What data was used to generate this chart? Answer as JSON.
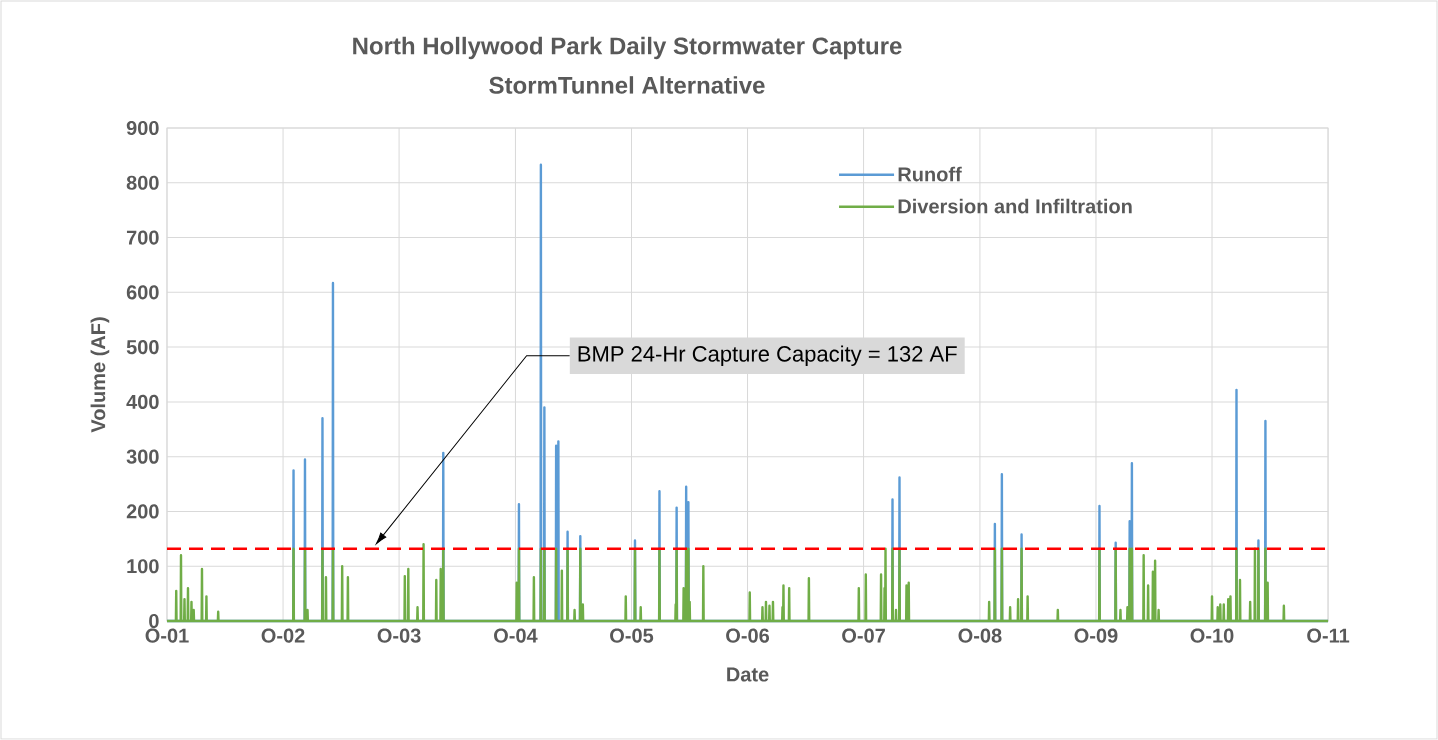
{
  "chart_data": {
    "type": "line",
    "title": "North Hollywood Park Daily Stormwater Capture",
    "subtitle": "StormTunnel Alternative",
    "xlabel": "Date",
    "ylabel": "Volume (AF)",
    "xlim": [
      "2001-10-01",
      "2011-10-01"
    ],
    "xticks": [
      {
        "value": "2001-10-01",
        "label": "O-01"
      },
      {
        "value": "2002-10-01",
        "label": "O-02"
      },
      {
        "value": "2003-10-01",
        "label": "O-03"
      },
      {
        "value": "2004-10-01",
        "label": "O-04"
      },
      {
        "value": "2005-10-01",
        "label": "O-05"
      },
      {
        "value": "2006-10-01",
        "label": "O-06"
      },
      {
        "value": "2007-10-01",
        "label": "O-07"
      },
      {
        "value": "2008-10-01",
        "label": "O-08"
      },
      {
        "value": "2009-10-01",
        "label": "O-09"
      },
      {
        "value": "2010-10-01",
        "label": "O-10"
      },
      {
        "value": "2011-10-01",
        "label": "O-11"
      }
    ],
    "ylim": [
      0,
      900
    ],
    "yticks": [
      0,
      100,
      200,
      300,
      400,
      500,
      600,
      700,
      800,
      900
    ],
    "grid": true,
    "legend": "top right",
    "series": [
      {
        "name": "Runoff",
        "color": "#5b9bd5",
        "x": [
          "2001-10-01",
          "2002-11-02",
          "2002-11-03",
          "2002-11-04",
          "2002-12-08",
          "2002-12-09",
          "2002-12-10",
          "2003-02-01",
          "2003-02-02",
          "2003-02-03",
          "2003-03-06",
          "2003-03-07",
          "2003-03-08",
          "2004-02-16",
          "2004-02-17",
          "2004-02-18",
          "2004-10-11",
          "2004-10-12",
          "2004-10-13",
          "2004-12-19",
          "2004-12-20",
          "2004-12-21",
          "2004-12-30",
          "2004-12-31",
          "2005-01-01",
          "2005-02-05",
          "2005-02-06",
          "2005-02-07",
          "2005-02-12",
          "2005-02-13",
          "2005-02-14",
          "2005-03-13",
          "2005-03-14",
          "2005-03-15",
          "2005-04-22",
          "2005-04-23",
          "2005-04-24",
          "2005-10-11",
          "2005-10-12",
          "2005-10-13",
          "2005-12-27",
          "2005-12-28",
          "2005-12-29",
          "2006-02-19",
          "2006-02-20",
          "2006-02-21",
          "2006-03-21",
          "2006-03-22",
          "2006-03-23",
          "2006-03-28",
          "2006-03-29",
          "2006-03-30",
          "2007-12-30",
          "2007-12-31",
          "2008-01-01",
          "2008-01-21",
          "2008-01-22",
          "2008-01-23",
          "2008-11-16",
          "2008-11-17",
          "2008-11-18",
          "2008-12-08",
          "2008-12-09",
          "2008-12-10",
          "2009-02-08",
          "2009-02-09",
          "2009-02-10",
          "2009-10-11",
          "2009-10-12",
          "2009-10-13",
          "2009-12-01",
          "2009-12-02",
          "2009-12-03",
          "2010-01-14",
          "2010-01-15",
          "2010-01-16",
          "2010-01-21",
          "2010-01-22",
          "2010-01-23",
          "2010-12-16",
          "2010-12-17",
          "2010-12-18",
          "2011-02-23",
          "2011-02-24",
          "2011-02-25",
          "2011-03-17",
          "2011-03-18",
          "2011-03-19",
          "2011-10-01"
        ],
        "values": [
          0,
          0,
          275,
          0,
          0,
          295,
          0,
          0,
          370,
          0,
          0,
          617,
          0,
          0,
          307,
          0,
          0,
          213,
          0,
          0,
          833,
          0,
          0,
          390,
          0,
          0,
          320,
          0,
          0,
          328,
          0,
          0,
          163,
          0,
          0,
          155,
          0,
          0,
          147,
          0,
          0,
          237,
          0,
          0,
          207,
          0,
          0,
          245,
          0,
          0,
          217,
          0,
          0,
          222,
          0,
          0,
          262,
          0,
          0,
          177,
          0,
          0,
          268,
          0,
          0,
          158,
          0,
          0,
          210,
          0,
          0,
          143,
          0,
          0,
          182,
          0,
          0,
          288,
          0,
          0,
          422,
          0,
          0,
          147,
          0,
          0,
          365,
          0,
          0
        ]
      },
      {
        "name": "Diversion and Infiltration",
        "color": "#70ad47",
        "x": [
          "2001-10-01",
          "2001-10-29",
          "2001-10-30",
          "2001-10-31",
          "2001-11-13",
          "2001-11-14",
          "2001-11-15",
          "2001-11-24",
          "2001-11-25",
          "2001-11-26",
          "2001-12-05",
          "2001-12-06",
          "2001-12-07",
          "2001-12-16",
          "2001-12-17",
          "2001-12-18",
          "2001-12-23",
          "2001-12-24",
          "2001-12-25",
          "2002-01-18",
          "2002-01-19",
          "2002-01-20",
          "2002-02-01",
          "2002-02-02",
          "2002-02-03",
          "2002-03-10",
          "2002-03-11",
          "2002-03-12",
          "2002-11-02",
          "2002-11-03",
          "2002-11-04",
          "2002-12-08",
          "2002-12-09",
          "2002-12-10",
          "2002-12-16",
          "2002-12-17",
          "2002-12-18",
          "2003-02-01",
          "2003-02-02",
          "2003-02-03",
          "2003-02-12",
          "2003-02-13",
          "2003-02-14",
          "2003-03-06",
          "2003-03-07",
          "2003-03-08",
          "2003-04-04",
          "2003-04-05",
          "2003-04-06",
          "2003-04-22",
          "2003-04-23",
          "2003-04-24",
          "2003-10-18",
          "2003-10-19",
          "2003-10-20",
          "2003-10-29",
          "2003-10-30",
          "2003-10-31",
          "2003-11-27",
          "2003-11-28",
          "2003-11-29",
          "2003-12-16",
          "2003-12-17",
          "2003-12-18",
          "2004-01-25",
          "2004-01-26",
          "2004-01-27",
          "2004-02-08",
          "2004-02-09",
          "2004-02-10",
          "2004-02-16",
          "2004-02-17",
          "2004-02-18",
          "2004-10-04",
          "2004-10-05",
          "2004-10-06",
          "2004-10-11",
          "2004-10-12",
          "2004-10-13",
          "2004-11-27",
          "2004-11-28",
          "2004-11-29",
          "2004-12-19",
          "2004-12-20",
          "2004-12-21",
          "2004-12-30",
          "2004-12-31",
          "2005-01-01",
          "2005-02-05",
          "2005-02-06",
          "2005-02-07",
          "2005-02-23",
          "2005-02-24",
          "2005-02-25",
          "2005-03-13",
          "2005-03-14",
          "2005-03-15",
          "2005-04-04",
          "2005-04-05",
          "2005-04-06",
          "2005-04-22",
          "2005-04-23",
          "2005-04-24",
          "2005-04-30",
          "2005-05-01",
          "2005-05-02",
          "2005-09-12",
          "2005-09-13",
          "2005-09-14",
          "2005-10-11",
          "2005-10-12",
          "2005-10-13",
          "2005-10-29",
          "2005-10-30",
          "2005-10-31",
          "2005-12-27",
          "2005-12-28",
          "2005-12-29",
          "2006-02-16",
          "2006-02-17",
          "2006-02-18",
          "2006-02-19",
          "2006-02-20",
          "2006-02-21",
          "2006-03-13",
          "2006-03-14",
          "2006-03-15",
          "2006-03-21",
          "2006-03-22",
          "2006-03-23",
          "2006-03-28",
          "2006-03-29",
          "2006-03-30",
          "2006-04-01",
          "2006-04-02",
          "2006-04-03",
          "2006-05-14",
          "2006-05-15",
          "2006-05-16",
          "2006-10-07",
          "2006-10-08",
          "2006-10-09",
          "2006-11-16",
          "2006-11-17",
          "2006-11-18",
          "2006-11-27",
          "2006-11-28",
          "2006-11-29",
          "2006-12-08",
          "2006-12-09",
          "2006-12-10",
          "2006-12-19",
          "2006-12-20",
          "2006-12-21",
          "2007-01-18",
          "2007-01-19",
          "2007-01-20",
          "2007-01-21",
          "2007-01-22",
          "2007-01-23",
          "2007-02-08",
          "2007-02-09",
          "2007-02-10",
          "2007-04-11",
          "2007-04-12",
          "2007-04-13",
          "2007-09-15",
          "2007-09-16",
          "2007-09-17",
          "2007-10-07",
          "2007-10-08",
          "2007-10-09",
          "2007-11-24",
          "2007-11-25",
          "2007-11-26",
          "2007-12-05",
          "2007-12-06",
          "2007-12-07",
          "2007-12-08",
          "2007-12-09",
          "2007-12-10",
          "2007-12-30",
          "2007-12-31",
          "2008-01-01",
          "2008-01-10",
          "2008-01-11",
          "2008-01-12",
          "2008-01-21",
          "2008-01-22",
          "2008-01-23",
          "2008-02-12",
          "2008-02-13",
          "2008-02-14",
          "2008-02-19",
          "2008-02-20",
          "2008-02-21",
          "2008-10-29",
          "2008-10-30",
          "2008-10-31",
          "2008-11-16",
          "2008-11-17",
          "2008-11-18",
          "2008-12-08",
          "2008-12-09",
          "2008-12-10",
          "2009-01-03",
          "2009-01-04",
          "2009-01-05",
          "2009-01-28",
          "2009-01-29",
          "2009-01-30",
          "2009-02-08",
          "2009-02-09",
          "2009-02-10",
          "2009-02-27",
          "2009-02-28",
          "2009-03-01",
          "2009-06-02",
          "2009-06-03",
          "2009-06-04",
          "2009-10-11",
          "2009-10-12",
          "2009-10-13",
          "2009-12-01",
          "2009-12-02",
          "2009-12-03",
          "2009-12-16",
          "2009-12-17",
          "2009-12-18",
          "2010-01-07",
          "2010-01-08",
          "2010-01-09",
          "2010-01-14",
          "2010-01-15",
          "2010-01-16",
          "2010-01-21",
          "2010-01-22",
          "2010-01-23",
          "2010-02-27",
          "2010-02-28",
          "2010-03-01",
          "2010-03-13",
          "2010-03-14",
          "2010-03-15",
          "2010-03-28",
          "2010-03-29",
          "2010-03-30",
          "2010-04-04",
          "2010-04-05",
          "2010-04-06",
          "2010-04-15",
          "2010-04-16",
          "2010-04-17",
          "2010-09-30",
          "2010-10-01",
          "2010-10-02",
          "2010-10-18",
          "2010-10-19",
          "2010-10-20",
          "2010-10-26",
          "2010-10-27",
          "2010-10-28",
          "2010-11-06",
          "2010-11-07",
          "2010-11-08",
          "2010-11-20",
          "2010-11-21",
          "2010-11-22",
          "2010-11-27",
          "2010-11-28",
          "2010-11-29",
          "2010-12-16",
          "2010-12-17",
          "2010-12-18",
          "2010-12-27",
          "2010-12-28",
          "2010-12-29",
          "2011-01-28",
          "2011-01-29",
          "2011-01-30",
          "2011-02-12",
          "2011-02-13",
          "2011-02-14",
          "2011-02-23",
          "2011-02-24",
          "2011-02-25",
          "2011-03-17",
          "2011-03-18",
          "2011-03-19",
          "2011-03-24",
          "2011-03-25",
          "2011-03-26",
          "2011-05-14",
          "2011-05-15",
          "2011-05-16",
          "2011-10-01"
        ],
        "values": [
          0,
          0,
          55,
          0,
          0,
          120,
          0,
          0,
          40,
          0,
          0,
          60,
          0,
          0,
          35,
          0,
          0,
          20,
          0,
          0,
          95,
          0,
          0,
          45,
          0,
          0,
          17,
          0,
          0,
          132,
          0,
          0,
          132,
          0,
          0,
          20,
          0,
          0,
          132,
          0,
          0,
          80,
          0,
          0,
          132,
          0,
          0,
          100,
          0,
          0,
          80,
          0,
          0,
          82,
          0,
          0,
          95,
          0,
          0,
          25,
          0,
          0,
          140,
          0,
          0,
          75,
          0,
          0,
          95,
          0,
          0,
          132,
          0,
          0,
          70,
          0,
          0,
          132,
          0,
          0,
          80,
          0,
          0,
          132,
          0,
          0,
          132,
          0,
          0,
          132,
          0,
          0,
          92,
          0,
          0,
          132,
          0,
          0,
          20,
          0,
          0,
          132,
          0,
          0,
          30,
          0,
          0,
          45,
          0,
          0,
          132,
          0,
          0,
          25,
          0,
          0,
          132,
          0,
          0,
          30,
          0,
          0,
          132,
          0,
          0,
          60,
          0,
          0,
          132,
          0,
          0,
          132,
          0,
          0,
          35,
          0,
          0,
          100,
          0,
          0,
          52,
          0,
          0,
          25,
          0,
          0,
          35,
          0,
          0,
          28,
          0,
          0,
          35,
          0,
          0,
          25,
          0,
          0,
          65,
          0,
          0,
          60,
          0,
          0,
          78,
          0,
          0,
          60,
          0,
          0,
          85,
          0,
          0,
          85,
          0,
          0,
          60,
          0,
          0,
          132,
          0,
          0,
          132,
          0,
          0,
          20,
          0,
          0,
          132,
          0,
          0,
          65,
          0,
          0,
          70,
          0,
          0,
          35,
          0,
          0,
          132,
          0,
          0,
          132,
          0,
          0,
          25,
          0,
          0,
          40,
          0,
          0,
          132,
          0,
          0,
          45,
          0,
          0,
          20,
          0,
          0,
          132,
          0,
          0,
          132,
          0,
          0,
          20,
          0,
          0,
          25,
          0,
          0,
          132,
          0,
          0,
          132,
          0,
          0,
          120,
          0,
          0,
          65,
          0,
          0,
          90,
          0,
          0,
          110,
          0,
          0,
          20,
          0,
          0,
          45,
          0,
          0,
          25,
          0,
          0,
          30,
          0,
          0,
          30,
          0,
          0,
          40,
          0,
          0,
          45,
          0,
          0,
          132,
          0,
          0,
          75,
          0,
          0,
          35,
          0,
          0,
          132,
          0,
          0,
          132,
          0,
          0,
          132,
          0,
          0,
          70,
          0,
          0,
          28,
          0,
          0
        ]
      }
    ],
    "ref_lines": [
      {
        "axis": "y",
        "value": 132,
        "color": "#ff0000",
        "line_style": "dashed"
      }
    ],
    "annotations": [
      "BMP 24-Hr Capture Capacity = 132 AF"
    ]
  }
}
